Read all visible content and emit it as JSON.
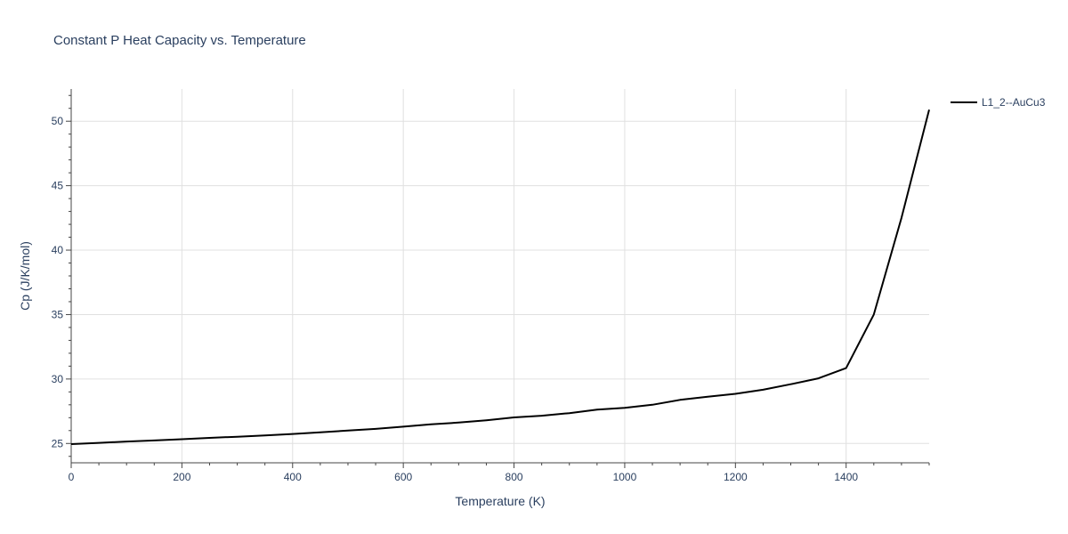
{
  "chart_data": {
    "type": "line",
    "title": "Constant P Heat Capacity vs. Temperature",
    "xlabel": "Temperature (K)",
    "ylabel": "Cp (J/K/mol)",
    "xlim": [
      0,
      1550
    ],
    "ylim": [
      23.5,
      52.5
    ],
    "xticks": [
      0,
      200,
      400,
      600,
      800,
      1000,
      1200,
      1400
    ],
    "yticks": [
      25,
      30,
      35,
      40,
      45,
      50
    ],
    "grid": true,
    "legend_position": "top-right",
    "series": [
      {
        "name": "L1_2--AuCu3",
        "color": "#000000",
        "x": [
          0,
          50,
          100,
          150,
          200,
          250,
          300,
          350,
          400,
          450,
          500,
          550,
          600,
          650,
          700,
          750,
          800,
          850,
          900,
          950,
          1000,
          1050,
          1100,
          1150,
          1200,
          1250,
          1300,
          1350,
          1400,
          1450,
          1500,
          1550
        ],
        "y": [
          24.95,
          25.05,
          25.15,
          25.23,
          25.33,
          25.43,
          25.52,
          25.62,
          25.74,
          25.87,
          26.0,
          26.13,
          26.3,
          26.48,
          26.62,
          26.8,
          27.02,
          27.15,
          27.35,
          27.62,
          27.76,
          28.0,
          28.38,
          28.62,
          28.85,
          29.17,
          29.6,
          30.05,
          30.85,
          35.0,
          42.5,
          50.9
        ]
      }
    ]
  }
}
